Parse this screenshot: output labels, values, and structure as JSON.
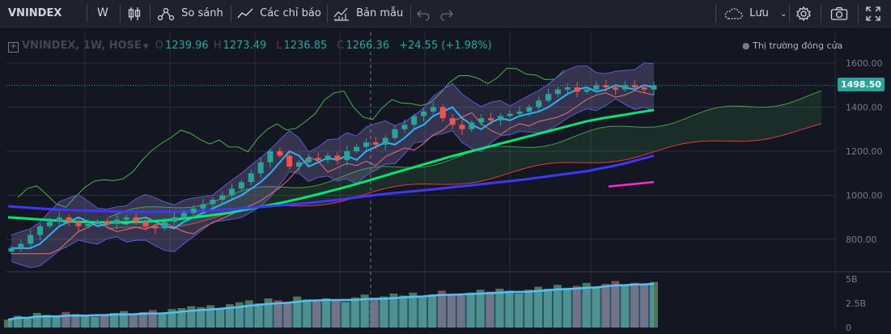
{
  "toolbar": {
    "symbol": "VNINDEX",
    "interval": "W",
    "compare_label": "So sánh",
    "indicators_label": "Các chỉ báo",
    "templates_label": "Bản mẫu",
    "save_label": "Lưu"
  },
  "legend": {
    "symbol_info": "VNINDEX, 1W, HOSE",
    "open_prefix": "O",
    "open": "1239.96",
    "high_prefix": "H",
    "high": "1273.49",
    "low_prefix": "L",
    "low": "1236.85",
    "close_prefix": "C",
    "close": "1266.36",
    "change": "+24.55 (+1.98%)"
  },
  "market_status": "Thị trường đóng cửa",
  "last_price": "1498.50",
  "price_axis_ticks": [
    "1600.00",
    "1400.00",
    "1200.00",
    "1000.00",
    "800.00"
  ],
  "volume_axis_ticks": [
    "5B",
    "2.5B",
    "0"
  ],
  "colors": {
    "up": "#26a69a",
    "down": "#ef5350",
    "background": "#131722",
    "toolbar": "#1e222d",
    "ma_fast": "#00e676",
    "ma_slow": "#3f37ff",
    "bb_fill": "#8e7cc3",
    "cloud_fill": "#4caf50",
    "short_ma": "#ff2dd1"
  },
  "chart_data": {
    "type": "candlestick",
    "interval": "1W",
    "y_axis_ticks": [
      800,
      1000,
      1200,
      1400,
      1600
    ],
    "ylim": [
      700,
      1650
    ],
    "volume_ticks_b": [
      0,
      2.5,
      5
    ],
    "volume_ylim_b": [
      0,
      6
    ],
    "last_close": 1498.5,
    "ohlc_summary": {
      "open": 1239.96,
      "high": 1273.49,
      "low": 1236.85,
      "close": 1266.36,
      "change": 24.55,
      "change_pct": 1.98
    },
    "series": [
      {
        "name": "close",
        "values": [
          760,
          780,
          820,
          860,
          880,
          900,
          880,
          860,
          870,
          880,
          870,
          890,
          900,
          880,
          860,
          850,
          880,
          900,
          920,
          940,
          960,
          980,
          1000,
          1030,
          1060,
          1100,
          1150,
          1200,
          1180,
          1130,
          1150,
          1170,
          1160,
          1180,
          1160,
          1200,
          1220,
          1240,
          1230,
          1260,
          1300,
          1320,
          1360,
          1380,
          1400,
          1350,
          1320,
          1300,
          1330,
          1350,
          1340,
          1360,
          1370,
          1380,
          1400,
          1430,
          1460,
          1480,
          1490,
          1470,
          1480,
          1500,
          1490,
          1480,
          1500,
          1490,
          1480,
          1498.5
        ]
      },
      {
        "name": "ma_fast",
        "values": [
          900,
          895,
          890,
          885,
          880,
          878,
          877,
          878,
          880,
          885,
          892,
          900,
          910,
          920,
          935,
          950,
          965,
          982,
          1000,
          1020,
          1040,
          1062,
          1085,
          1108,
          1130,
          1152,
          1175,
          1195,
          1215,
          1235,
          1255,
          1275,
          1295,
          1315,
          1335,
          1350,
          1362,
          1375,
          1387
        ]
      },
      {
        "name": "ma_slow",
        "values": [
          950,
          945,
          940,
          935,
          932,
          930,
          928,
          926,
          925,
          925,
          926,
          928,
          930,
          935,
          940,
          946,
          952,
          958,
          964,
          972,
          980,
          990,
          1000,
          1008,
          1015,
          1022,
          1030,
          1038,
          1046,
          1054,
          1062,
          1070,
          1080,
          1090,
          1100,
          1110,
          1125,
          1140,
          1160,
          1180
        ]
      },
      {
        "name": "ma_short",
        "values": [
          1040,
          1050,
          1060
        ]
      }
    ],
    "volume_b": [
      0.8,
      1.2,
      1.0,
      1.5,
      1.3,
      1.1,
      1.6,
      1.4,
      1.2,
      1.1,
      1.3,
      1.5,
      1.7,
      1.4,
      1.6,
      1.8,
      1.5,
      1.9,
      2.0,
      2.2,
      2.1,
      2.3,
      2.0,
      2.4,
      2.6,
      2.8,
      2.5,
      3.0,
      2.8,
      2.6,
      3.2,
      2.9,
      2.7,
      3.0,
      2.8,
      2.6,
      3.1,
      3.4,
      3.0,
      3.2,
      3.5,
      3.3,
      3.6,
      3.1,
      3.4,
      3.8,
      3.5,
      3.3,
      3.6,
      3.9,
      3.7,
      4.0,
      3.8,
      3.5,
      3.9,
      4.2,
      4.0,
      4.4,
      4.1,
      4.3,
      4.6,
      4.2,
      4.5,
      4.8,
      4.4,
      4.6,
      4.5,
      4.7
    ]
  }
}
